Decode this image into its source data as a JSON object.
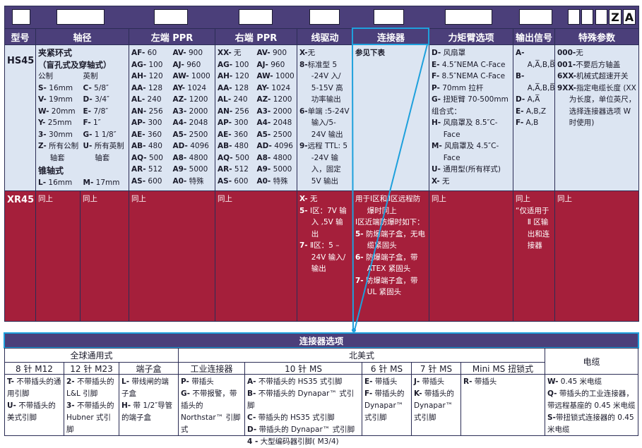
{
  "headers": [
    "型号",
    "轴径",
    "左端 PPR",
    "右端 PPR",
    "线驱动",
    "连接器",
    "力矩臂选项",
    "输出信号",
    "特殊参数"
  ],
  "code_box_letters": [
    "Z",
    "A"
  ],
  "hs45": {
    "model": "HS45",
    "shaft": {
      "title": "夹紧环式",
      "subtitle": "（盲孔式及穿轴式）",
      "metric_label": "公制",
      "imperial_label": "英制",
      "items": [
        [
          "S-",
          " 16mm"
        ],
        [
          "C-",
          " 5/8″"
        ],
        [
          "V-",
          " 19mm"
        ],
        [
          "D-",
          " 3/4″"
        ],
        [
          "W-",
          " 20mm"
        ],
        [
          "E-",
          " 7/8″"
        ],
        [
          "Y-",
          " 25mm"
        ],
        [
          "F-",
          " 1″"
        ],
        [
          "3-",
          " 30mm"
        ],
        [
          "G-",
          " 1 1/8″"
        ],
        [
          "Z-",
          " 所有公制轴套"
        ],
        [
          "U-",
          " 所有英制轴套"
        ]
      ],
      "taper_title": "锥轴式",
      "taper_items": [
        [
          "L-",
          " 16mm"
        ],
        [
          "M-",
          " 17mm"
        ]
      ]
    },
    "left_ppr": [
      [
        "AF-",
        " 60"
      ],
      [
        "AV-",
        " 900"
      ],
      [
        "AG-",
        " 100"
      ],
      [
        "AJ-",
        " 960"
      ],
      [
        "AH-",
        " 120"
      ],
      [
        "AW-",
        " 1000"
      ],
      [
        "AA-",
        " 128"
      ],
      [
        "AY-",
        " 1024"
      ],
      [
        "AL-",
        " 240"
      ],
      [
        "AZ-",
        " 1200"
      ],
      [
        "AN-",
        " 256"
      ],
      [
        "A3-",
        " 2000"
      ],
      [
        "AP-",
        " 300"
      ],
      [
        "A4-",
        " 2048"
      ],
      [
        "AE-",
        " 360"
      ],
      [
        "A5-",
        " 2500"
      ],
      [
        "AB-",
        " 480"
      ],
      [
        "AD-",
        " 4096"
      ],
      [
        "AQ-",
        " 500"
      ],
      [
        "A8-",
        " 4800"
      ],
      [
        "AR-",
        " 512"
      ],
      [
        "A9-",
        " 5000"
      ],
      [
        "AS-",
        " 600"
      ],
      [
        "A0-",
        " 特殊"
      ]
    ],
    "right_ppr": [
      [
        "XX-",
        " 无"
      ],
      [
        "AV-",
        " 900"
      ],
      [
        "AG-",
        " 100"
      ],
      [
        "AJ-",
        " 960"
      ],
      [
        "AH-",
        " 120"
      ],
      [
        "AW-",
        " 1000"
      ],
      [
        "AA-",
        " 128"
      ],
      [
        "AY-",
        " 1024"
      ],
      [
        "AL-",
        " 240"
      ],
      [
        "AZ-",
        " 1200"
      ],
      [
        "AN-",
        " 256"
      ],
      [
        "A3-",
        " 2000"
      ],
      [
        "AP-",
        " 300"
      ],
      [
        "A4-",
        " 2048"
      ],
      [
        "AE-",
        " 360"
      ],
      [
        "A5-",
        " 2500"
      ],
      [
        "AB-",
        " 480"
      ],
      [
        "AD-",
        " 4096"
      ],
      [
        "AQ-",
        " 500"
      ],
      [
        "A8-",
        " 4800"
      ],
      [
        "AR-",
        " 512"
      ],
      [
        "A9-",
        " 5000"
      ],
      [
        "AS-",
        " 600"
      ],
      [
        "A0-",
        " 特殊"
      ]
    ],
    "line_driver": [
      [
        "X-",
        "无"
      ],
      [
        "8-",
        "标准型 5 -24V 入/ 5-15V 高功率输出"
      ],
      [
        "6-",
        "单端 :5-24V 输入/5-24V 输出"
      ],
      [
        "9-",
        "远程 TTL: 5 -24V 输入，固定 5V 输出"
      ]
    ],
    "connector": [
      [
        "",
        "参见下表"
      ]
    ],
    "torque_arm": [
      [
        "D-",
        " 风扇罩"
      ],
      [
        "E-",
        " 4.5″NEMA C-Face"
      ],
      [
        "F-",
        " 8.5″NEMA C-Face"
      ],
      [
        "P-",
        " 70mm 拉杆"
      ],
      [
        "G-",
        " 扭矩臂 70-500mm"
      ],
      [
        "",
        "组合式："
      ],
      [
        "H-",
        " 风扇罩及 8.5″C-Face"
      ],
      [
        "M-",
        " 风扇罩及 4.5″C-Face"
      ],
      [
        "U-",
        " 通用型(所有样式)"
      ],
      [
        "X-",
        " 无"
      ]
    ],
    "output_signal": [
      [
        "A-",
        " A,A̅,B,B̅,Z,Z̅"
      ],
      [
        "B-",
        " A,A̅,B,B̅"
      ],
      [
        "D-",
        " A,A̅"
      ],
      [
        "E-",
        " A,B,Z"
      ],
      [
        "F-",
        " A,B"
      ]
    ],
    "special": [
      [
        "000-",
        "无"
      ],
      [
        "001-",
        "不要后方轴盖"
      ],
      [
        "6XX-",
        "机械式超速开关"
      ],
      [
        "9XX-",
        "指定电缆长度 (XX 为长度，单位英尺，选择连接器选项 W 时使用)"
      ]
    ]
  },
  "xr45": {
    "model": "XR45",
    "shaft_metric": "同上",
    "shaft_imperial": "同上",
    "left_ppr": "同上",
    "right_ppr": "同上",
    "line_driver": [
      [
        "X-",
        " 无"
      ],
      [
        "5-",
        " Ⅰ区：7V 输入 ,5V 输出"
      ],
      [
        "7-",
        " Ⅱ区：5 – 24V 输入/输出"
      ]
    ],
    "connector": [
      [
        "",
        "用于Ⅰ区和Ⅱ区远程防爆时同上"
      ],
      [
        "",
        "Ⅰ区近端防爆时如下："
      ],
      [
        "5-",
        " 防爆端子盒，无电缆紧固头"
      ],
      [
        "6-",
        " 防爆端子盒，带 ATEX 紧固头"
      ],
      [
        "7-",
        " 防爆端子盒，带 UL 紧固头"
      ]
    ],
    "torque_arm": "同上",
    "output_signal": [
      [
        "",
        "同上"
      ],
      [
        "",
        "“仅适用于 Ⅱ 区输出和连接器"
      ]
    ],
    "special": "同上"
  },
  "connector_options": {
    "title": "连接器选项",
    "groups": [
      "全球通用式",
      "北美式",
      "电缆"
    ],
    "subheaders": [
      "8 针 M12",
      "12 针 M23",
      "端子盒",
      "工业连接器",
      "10 针 MS",
      "6 针 MS",
      "7 针 MS",
      "Mini MS 扭锁式"
    ],
    "cells": [
      [
        [
          "T-",
          " 不带插头的通用引脚"
        ],
        [
          "U-",
          " 不带插头的美式引脚"
        ]
      ],
      [
        [
          "2-",
          " 不带插头的 L&L 引脚"
        ],
        [
          "3-",
          " 不带插头的 Hubner 式引脚"
        ]
      ],
      [
        [
          "L-",
          " 带线闸的端子盒"
        ],
        [
          "H-",
          " 带 1/2″导管的端子盒"
        ]
      ],
      [
        [
          "P-",
          " 带插头"
        ],
        [
          "G-",
          " 不带报警，带插头的 Northstar™ 引脚式"
        ]
      ],
      [
        [
          "A-",
          " 不带插头的 HS35 式引脚"
        ],
        [
          "B-",
          " 不带插头的 Dynapar™ 式引脚"
        ],
        [
          "C-",
          " 带插头的 HS35 式引脚"
        ],
        [
          "D-",
          " 带插头的 Dynapar™ 式引脚"
        ],
        [
          "4 -",
          " 大型编码器引脚( M3/4)"
        ]
      ],
      [
        [
          "E-",
          " 带插头"
        ],
        [
          "F-",
          " 带插头的 Dynapar™ 式引脚"
        ]
      ],
      [
        [
          "J-",
          " 带插头"
        ],
        [
          "K-",
          " 带插头的 Dynapar™ 式引脚"
        ]
      ],
      [
        [
          "R-",
          " 带插头"
        ]
      ],
      [
        [
          "W-",
          " 0.45 米电缆"
        ],
        [
          "Q-",
          " 带插头的工业连接器，带远程基座的 0.45 米电缆"
        ],
        [
          "S-",
          "带扭锁式连接器的 0.45 米电缆"
        ]
      ]
    ]
  },
  "colors": {
    "header": "#4b3f7a",
    "hs45_row": "#dce5f2",
    "xr45_row": "#a51f3b",
    "highlight": "#1ea0dc"
  }
}
